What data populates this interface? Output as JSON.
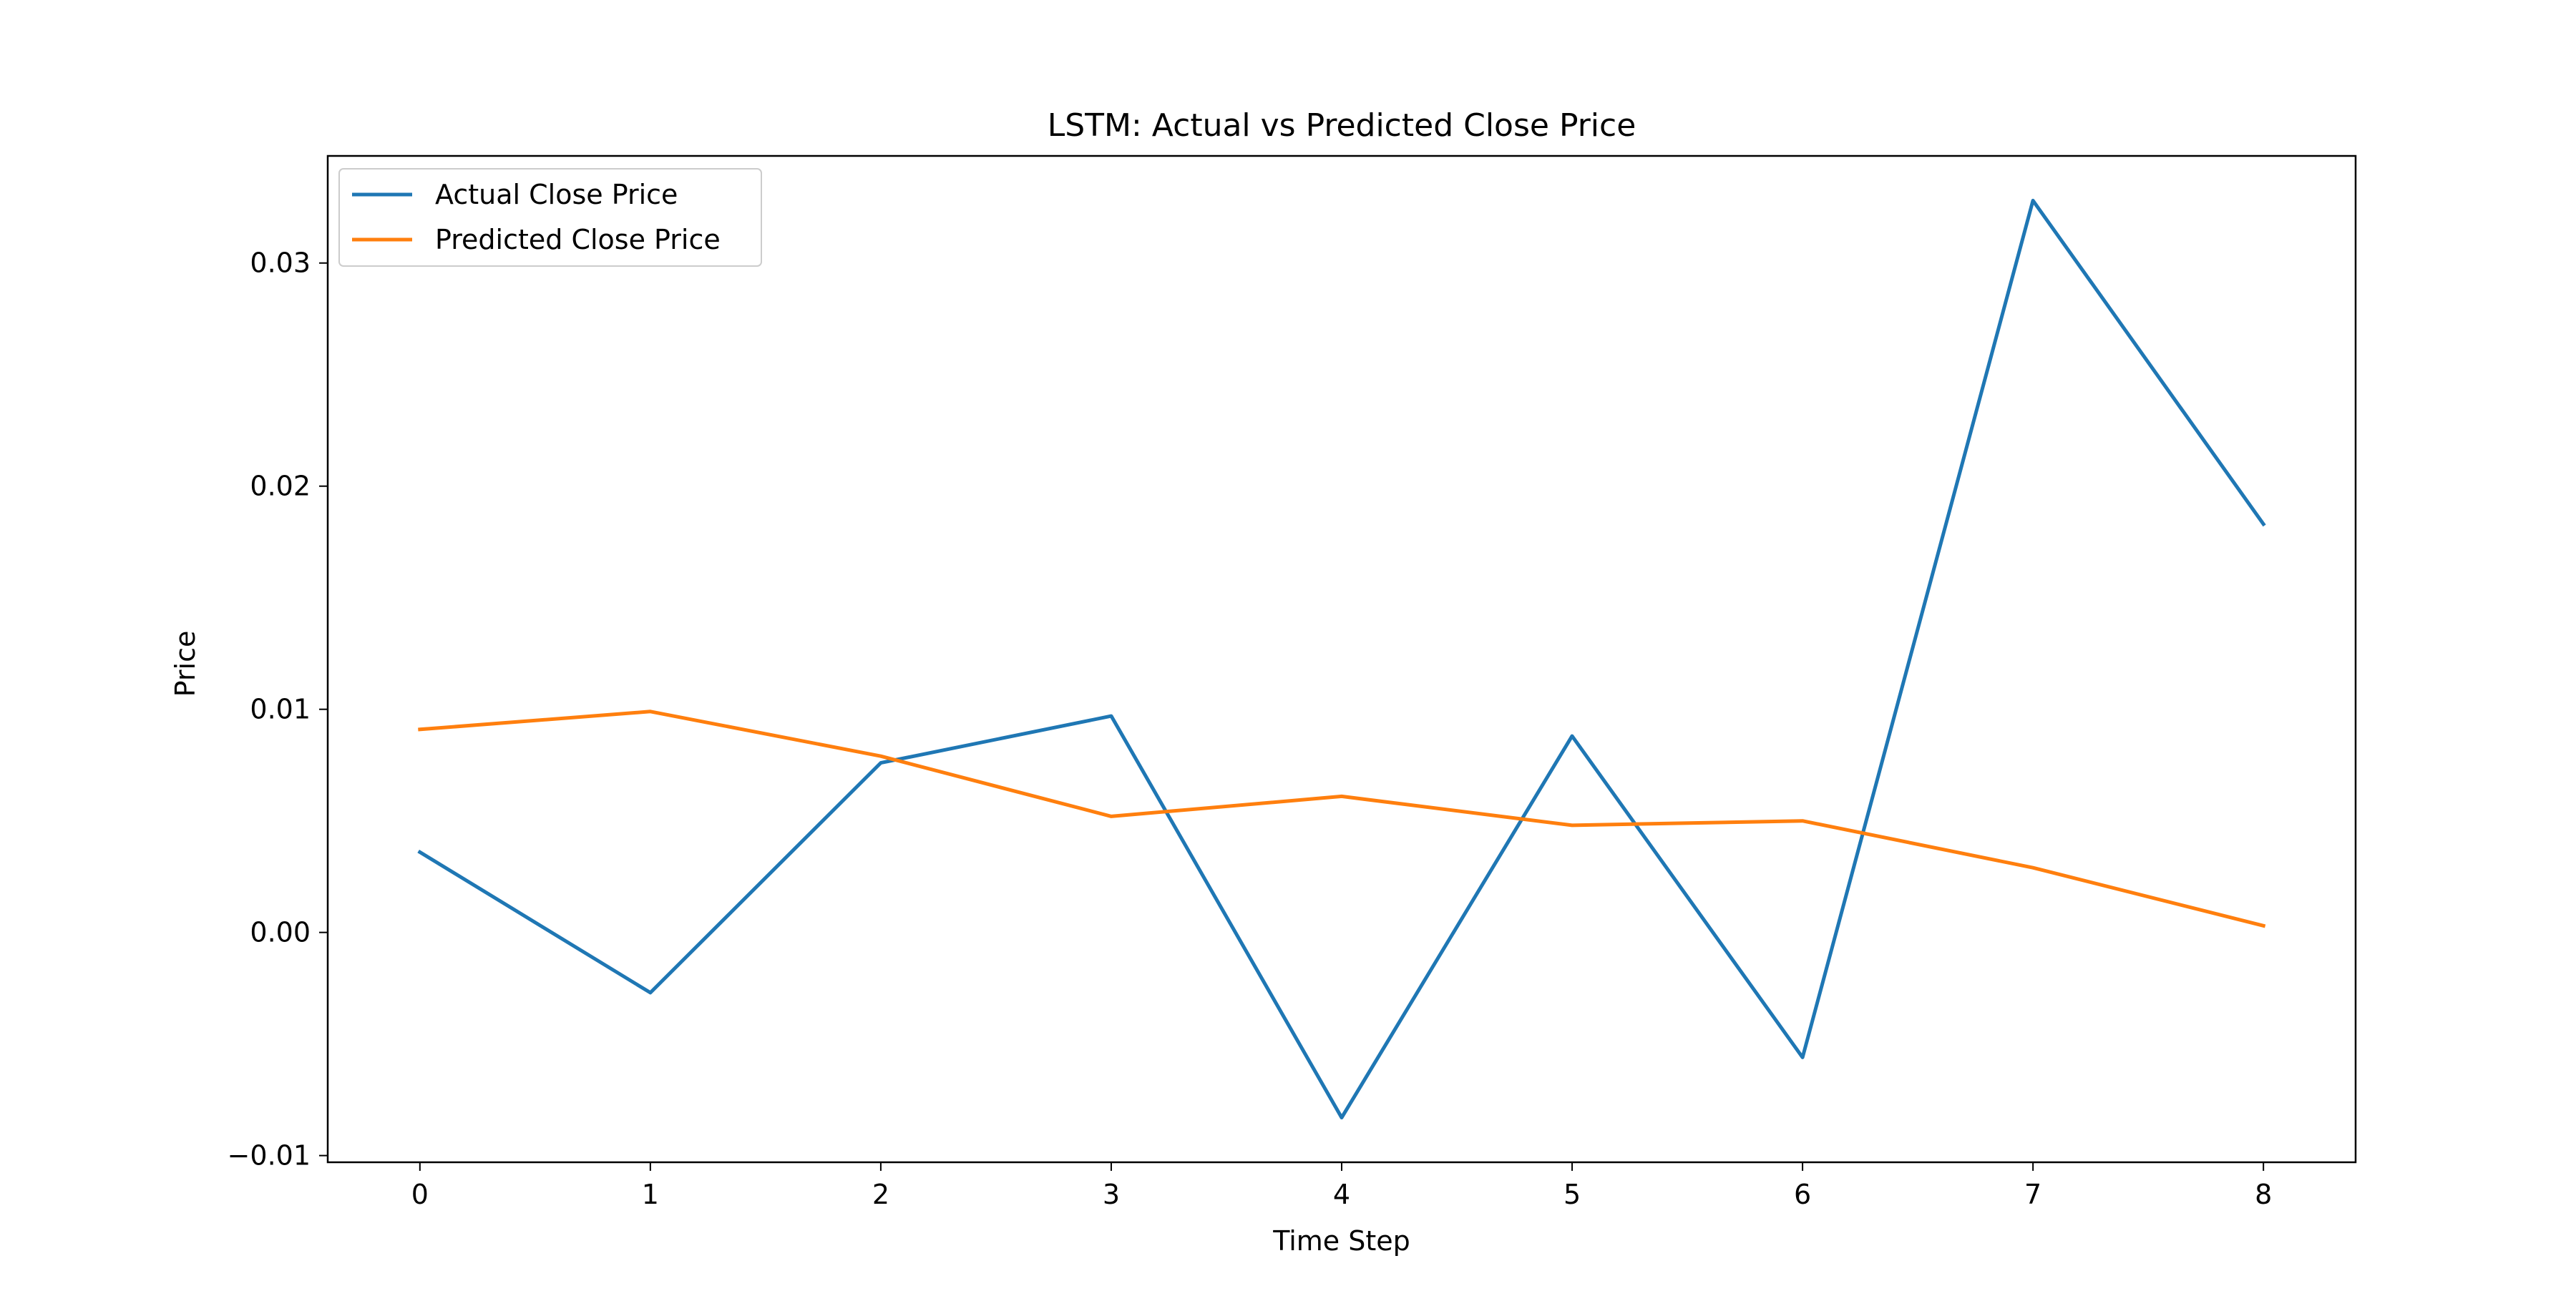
{
  "chart_data": {
    "type": "line",
    "title": "LSTM: Actual vs Predicted Close Price",
    "xlabel": "Time Step",
    "ylabel": "Price",
    "x": [
      0,
      1,
      2,
      3,
      4,
      5,
      6,
      7,
      8
    ],
    "xlim": [
      -0.4,
      8.4
    ],
    "ylim": [
      -0.0103,
      0.0348
    ],
    "xticks": [
      0,
      1,
      2,
      3,
      4,
      5,
      6,
      7,
      8
    ],
    "xtick_labels": [
      "0",
      "1",
      "2",
      "3",
      "4",
      "5",
      "6",
      "7",
      "8"
    ],
    "yticks": [
      -0.01,
      0.0,
      0.01,
      0.02,
      0.03
    ],
    "ytick_labels": [
      "−0.01",
      "0.00",
      "0.01",
      "0.02",
      "0.03"
    ],
    "grid": false,
    "legend_position": "top-left",
    "series": [
      {
        "name": "Actual Close Price",
        "color": "#1f77b4",
        "values": [
          0.0036,
          -0.0027,
          0.0076,
          0.0097,
          -0.0083,
          0.0088,
          -0.0056,
          0.0328,
          0.0183
        ]
      },
      {
        "name": "Predicted Close Price",
        "color": "#ff7f0e",
        "values": [
          0.0091,
          0.0099,
          0.0079,
          0.0052,
          0.0061,
          0.0048,
          0.005,
          0.0029,
          0.0003
        ]
      }
    ]
  }
}
